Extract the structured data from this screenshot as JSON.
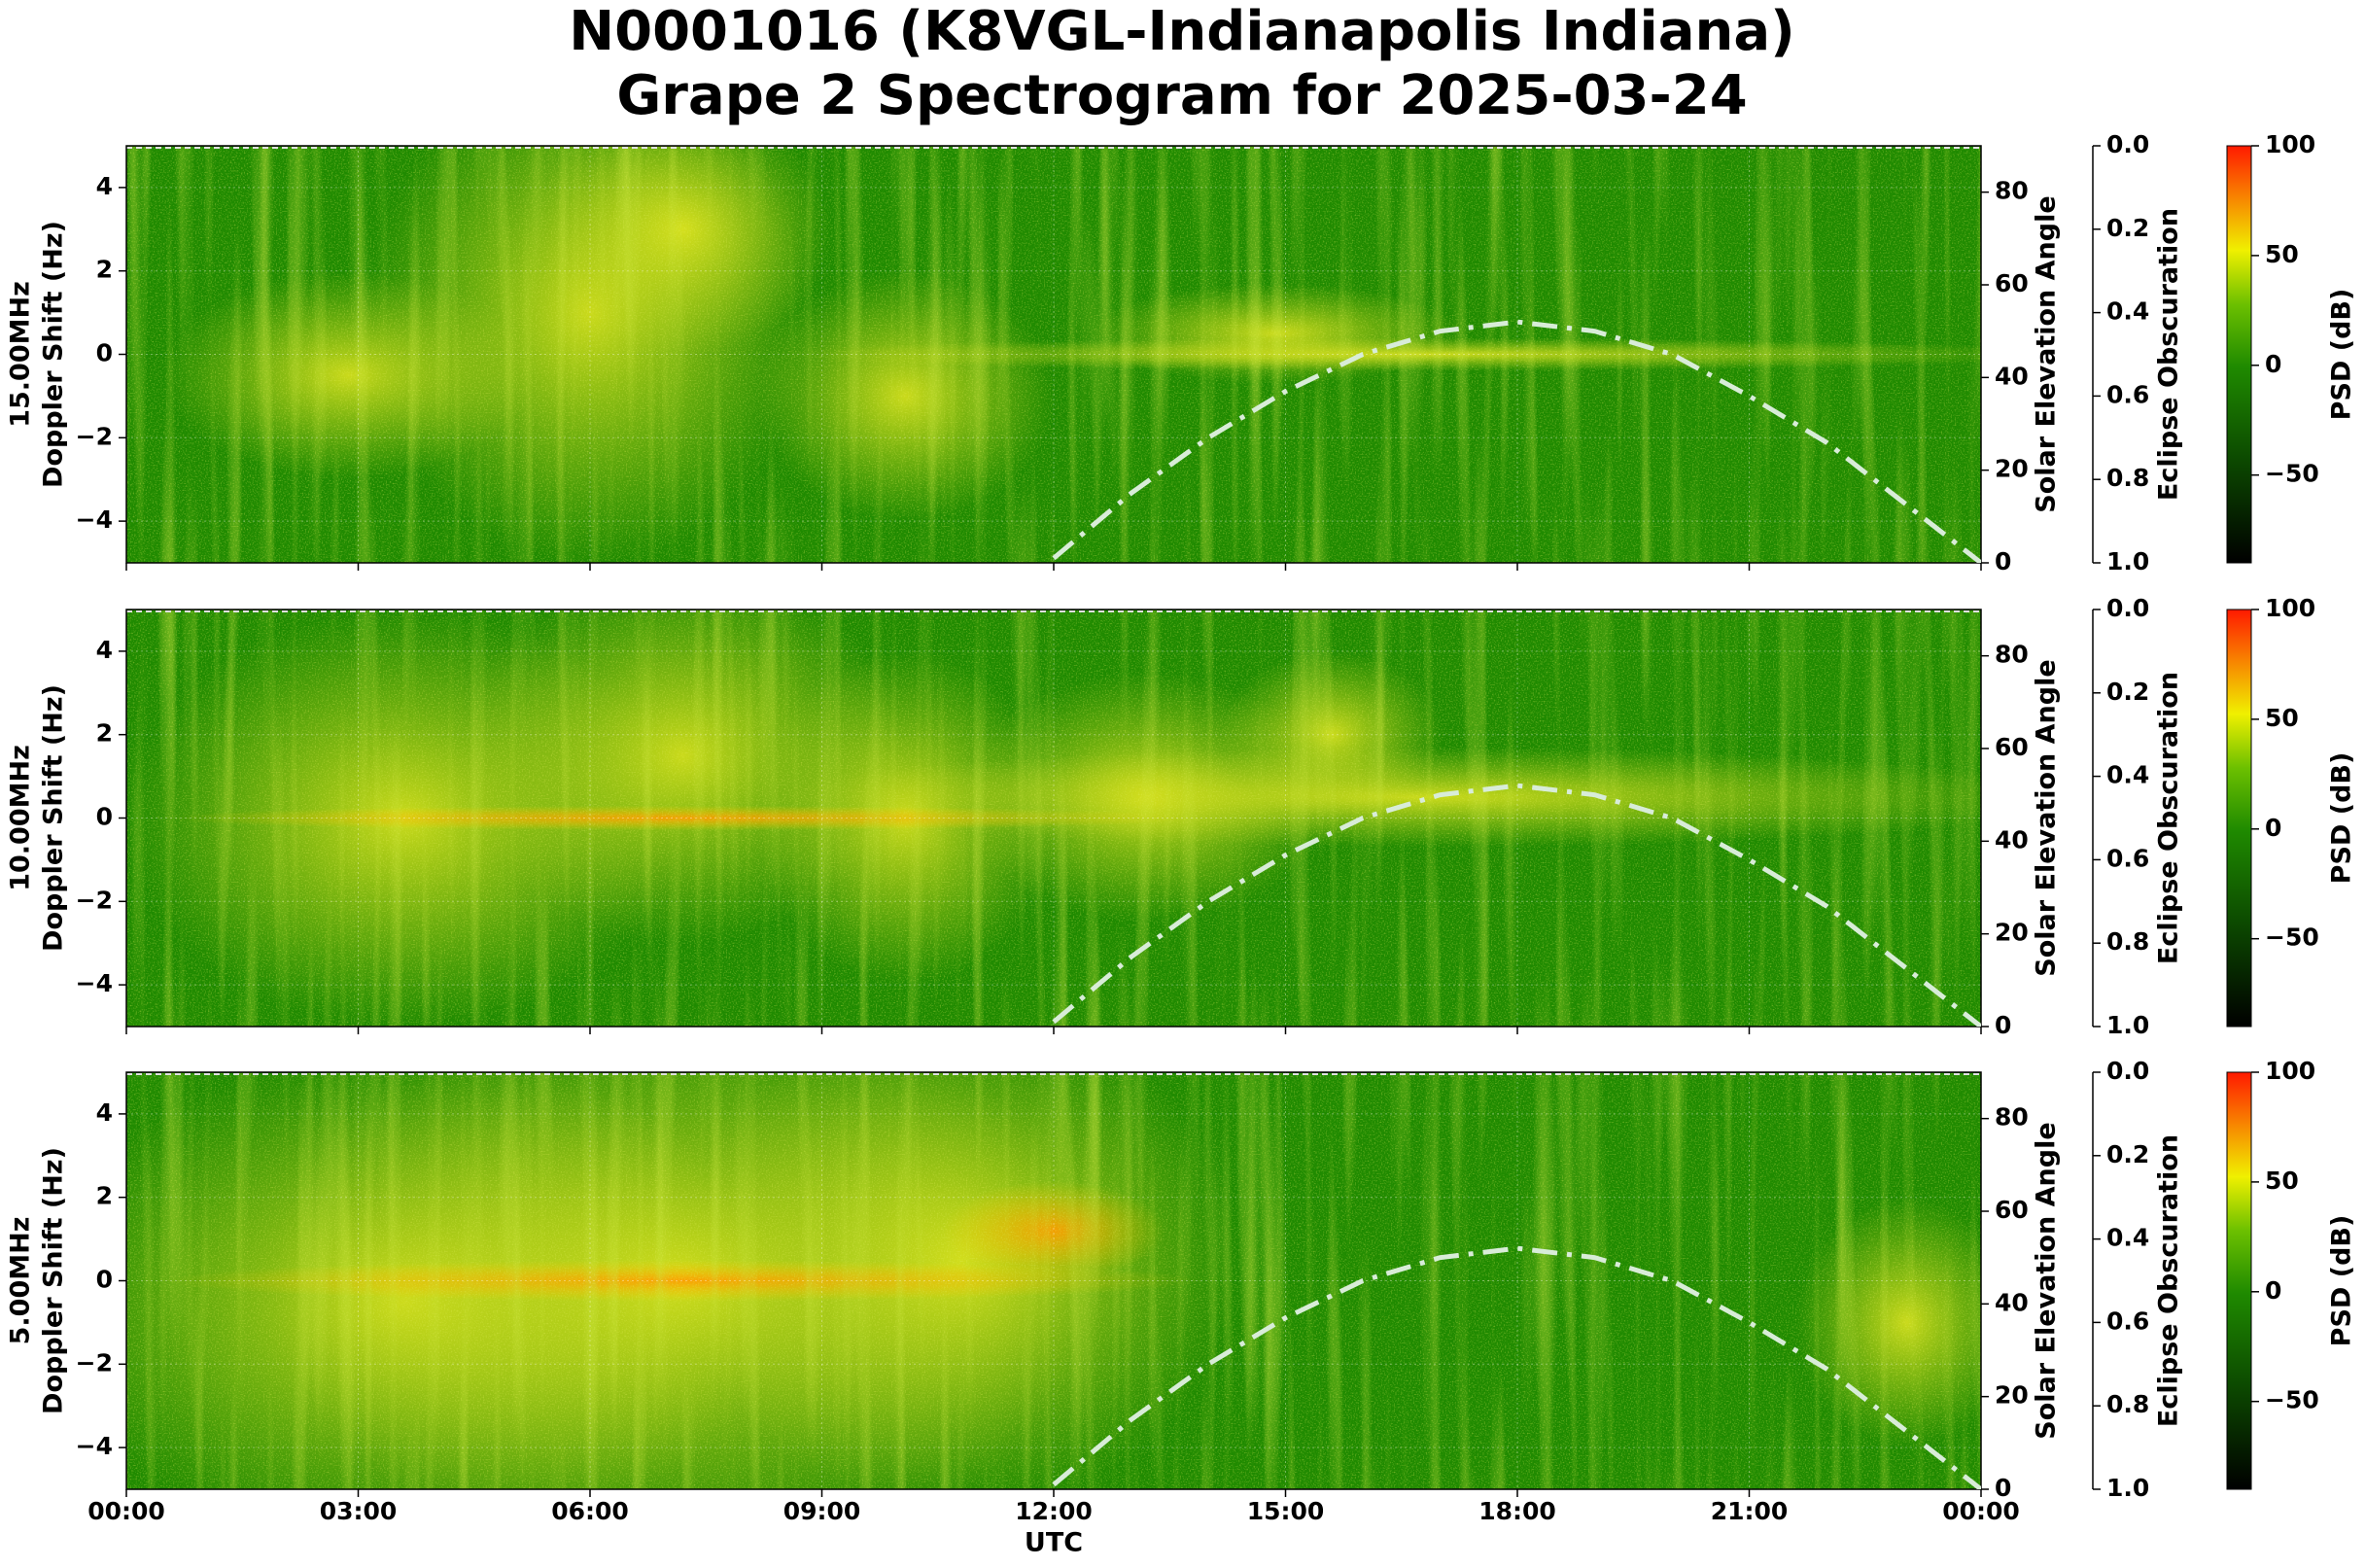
{
  "title": [
    "N0001016 (K8VGL-Indianapolis Indiana)",
    "Grape 2 Spectrogram for 2025-03-24"
  ],
  "chart_data": [
    {
      "type": "spectrogram",
      "ylabel": [
        "15.00MHz",
        "Doppler Shift (Hz)"
      ],
      "xlim": [
        0,
        24
      ],
      "xticks": [
        0,
        3,
        6,
        9,
        12,
        15,
        18,
        21,
        24
      ],
      "ylim": [
        -5,
        5
      ],
      "yticks": [
        {
          "value": -4,
          "label": "−4"
        },
        {
          "value": -2,
          "label": "−2"
        },
        0,
        2,
        4
      ],
      "y2label": "Solar Elevation Angle",
      "y2lim": [
        0,
        90
      ],
      "y2ticks": [
        0,
        20,
        40,
        60,
        80
      ],
      "y3label": "Eclipse Obscuration",
      "y3lim": [
        1,
        0
      ],
      "y3ticks": [
        {
          "value": 0,
          "label": "0.0"
        },
        {
          "value": 0.2,
          "label": "0.2"
        },
        {
          "value": 0.4,
          "label": "0.4"
        },
        {
          "value": 0.6,
          "label": "0.6"
        },
        {
          "value": 0.8,
          "label": "0.8"
        },
        {
          "value": 1,
          "label": "1.0"
        }
      ],
      "colorbar_label": "PSD (dB)",
      "clim": [
        -90,
        100
      ],
      "cticks": [
        {
          "value": -50,
          "label": "−50"
        },
        0,
        50,
        100
      ],
      "grid": true,
      "solar_elevation": {
        "axis": "y2",
        "color": "#d8ecd8",
        "x": [
          12,
          13,
          14,
          15,
          16,
          17,
          18,
          19,
          20,
          21,
          22,
          23,
          24
        ],
        "values": [
          1,
          15,
          27,
          37,
          45,
          50,
          52,
          50,
          45,
          36,
          26,
          13,
          0
        ]
      }
    },
    {
      "type": "spectrogram",
      "ylabel": [
        "10.00MHz",
        "Doppler Shift (Hz)"
      ],
      "xlim": [
        0,
        24
      ],
      "xticks": [
        0,
        3,
        6,
        9,
        12,
        15,
        18,
        21,
        24
      ],
      "ylim": [
        -5,
        5
      ],
      "yticks": [
        {
          "value": -4,
          "label": "−4"
        },
        {
          "value": -2,
          "label": "−2"
        },
        0,
        2,
        4
      ],
      "y2label": "Solar Elevation Angle",
      "y2lim": [
        0,
        90
      ],
      "y2ticks": [
        0,
        20,
        40,
        60,
        80
      ],
      "y3label": "Eclipse Obscuration",
      "y3lim": [
        1,
        0
      ],
      "y3ticks": [
        {
          "value": 0,
          "label": "0.0"
        },
        {
          "value": 0.2,
          "label": "0.2"
        },
        {
          "value": 0.4,
          "label": "0.4"
        },
        {
          "value": 0.6,
          "label": "0.6"
        },
        {
          "value": 0.8,
          "label": "0.8"
        },
        {
          "value": 1,
          "label": "1.0"
        }
      ],
      "colorbar_label": "PSD (dB)",
      "clim": [
        -90,
        100
      ],
      "cticks": [
        {
          "value": -50,
          "label": "−50"
        },
        0,
        50,
        100
      ],
      "grid": true,
      "solar_elevation": {
        "axis": "y2",
        "color": "#d8ecd8",
        "x": [
          12,
          13,
          14,
          15,
          16,
          17,
          18,
          19,
          20,
          21,
          22,
          23,
          24
        ],
        "values": [
          1,
          15,
          27,
          37,
          45,
          50,
          52,
          50,
          45,
          36,
          26,
          13,
          0
        ]
      }
    },
    {
      "type": "spectrogram",
      "ylabel": [
        "5.00MHz",
        "Doppler Shift (Hz)"
      ],
      "xlabel": "UTC",
      "xlim": [
        0,
        24
      ],
      "xticks": [
        {
          "value": 0,
          "label": "00:00"
        },
        {
          "value": 3,
          "label": "03:00"
        },
        {
          "value": 6,
          "label": "06:00"
        },
        {
          "value": 9,
          "label": "09:00"
        },
        {
          "value": 12,
          "label": "12:00"
        },
        {
          "value": 15,
          "label": "15:00"
        },
        {
          "value": 18,
          "label": "18:00"
        },
        {
          "value": 21,
          "label": "21:00"
        },
        {
          "value": 24,
          "label": "00:00"
        }
      ],
      "ylim": [
        -5,
        5
      ],
      "yticks": [
        {
          "value": -4,
          "label": "−4"
        },
        {
          "value": -2,
          "label": "−2"
        },
        0,
        2,
        4
      ],
      "y2label": "Solar Elevation Angle",
      "y2lim": [
        0,
        90
      ],
      "y2ticks": [
        0,
        20,
        40,
        60,
        80
      ],
      "y3label": "Eclipse Obscuration",
      "y3lim": [
        1,
        0
      ],
      "y3ticks": [
        {
          "value": 0,
          "label": "0.0"
        },
        {
          "value": 0.2,
          "label": "0.2"
        },
        {
          "value": 0.4,
          "label": "0.4"
        },
        {
          "value": 0.6,
          "label": "0.6"
        },
        {
          "value": 0.8,
          "label": "0.8"
        },
        {
          "value": 1,
          "label": "1.0"
        }
      ],
      "colorbar_label": "PSD (dB)",
      "clim": [
        -90,
        100
      ],
      "cticks": [
        {
          "value": -50,
          "label": "−50"
        },
        0,
        50,
        100
      ],
      "grid": true,
      "solar_elevation": {
        "axis": "y2",
        "color": "#d8ecd8",
        "x": [
          12,
          13,
          14,
          15,
          16,
          17,
          18,
          19,
          20,
          21,
          22,
          23,
          24
        ],
        "values": [
          1,
          15,
          27,
          37,
          45,
          50,
          52,
          50,
          45,
          36,
          26,
          13,
          0
        ]
      }
    }
  ]
}
